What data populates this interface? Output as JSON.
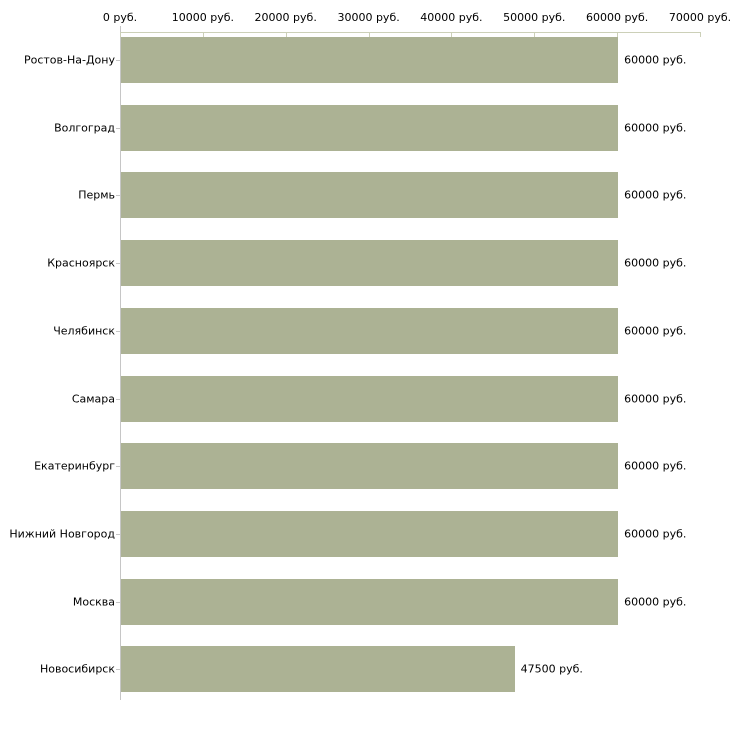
{
  "chart_data": {
    "type": "bar",
    "orientation": "horizontal",
    "unit": "руб.",
    "categories": [
      "Ростов-На-Дону",
      "Волгоград",
      "Пермь",
      "Красноярск",
      "Челябинск",
      "Самара",
      "Екатеринбург",
      "Нижний Новгород",
      "Москва",
      "Новосибирск"
    ],
    "values": [
      60000,
      60000,
      60000,
      60000,
      60000,
      60000,
      60000,
      60000,
      60000,
      47500
    ],
    "value_labels": [
      "60000 руб.",
      "60000 руб.",
      "60000 руб.",
      "60000 руб.",
      "60000 руб.",
      "60000 руб.",
      "60000 руб.",
      "60000 руб.",
      "60000 руб.",
      "47500 руб."
    ],
    "x_axis": {
      "position": "top",
      "min": 0,
      "max": 70000,
      "ticks": [
        0,
        10000,
        20000,
        30000,
        40000,
        50000,
        60000,
        70000
      ],
      "tick_labels": [
        "0 руб.",
        "10000 руб.",
        "20000 руб.",
        "30000 руб.",
        "40000 руб.",
        "50000 руб.",
        "60000 руб.",
        "70000 руб."
      ]
    },
    "grid": false,
    "legend": false,
    "colors": {
      "bar": "#acb294",
      "x_axis_line": "#ccd0b8",
      "y_axis_line": "#c6c6c6",
      "text": "#000000",
      "background": "#ffffff"
    }
  }
}
